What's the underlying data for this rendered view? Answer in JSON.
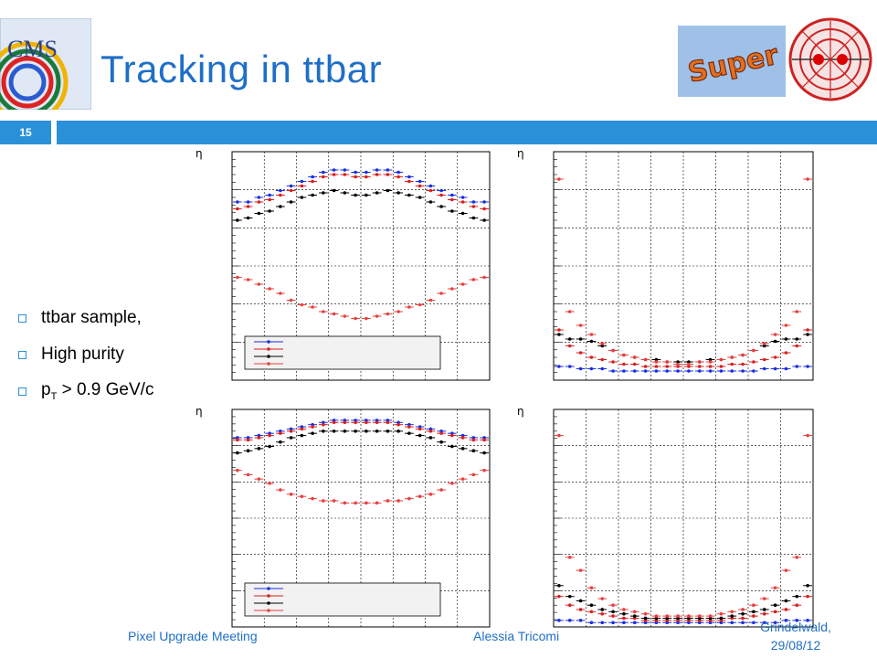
{
  "slide": {
    "number": "15",
    "title": "Tracking in ttbar",
    "cms_logo_text": "CMS",
    "super_logo_text": "Super",
    "bullets": [
      {
        "text": "ttbar sample,"
      },
      {
        "text": "High purity"
      },
      {
        "prefix": "p",
        "sub": "T",
        "suffix": " > 0.9 GeV/c"
      }
    ],
    "footer": {
      "left": "Pixel Upgrade Meeting",
      "center": "Alessia Tricomi",
      "right_line1": "Grindelwald,",
      "right_line2": "29/08/12"
    },
    "plot_axis_label": "η"
  },
  "colors": {
    "accent": "#2a91d8",
    "title": "#1f6fc7",
    "series": [
      "#1a2fe0",
      "#d92020",
      "#000000",
      "#e84040"
    ]
  },
  "chart_data": [
    {
      "type": "scatter",
      "position_word": "top-left",
      "xlabel": "η",
      "series": [
        {
          "values": [
            0.78,
            0.78,
            0.8,
            0.81,
            0.83,
            0.85,
            0.87,
            0.89,
            0.91,
            0.92,
            0.92,
            0.91,
            0.91,
            0.92,
            0.92,
            0.91,
            0.89,
            0.87,
            0.85,
            0.83,
            0.81,
            0.8,
            0.78,
            0.78
          ]
        },
        {
          "values": [
            0.75,
            0.76,
            0.78,
            0.79,
            0.81,
            0.83,
            0.85,
            0.87,
            0.89,
            0.9,
            0.9,
            0.89,
            0.89,
            0.9,
            0.9,
            0.89,
            0.87,
            0.85,
            0.83,
            0.81,
            0.79,
            0.78,
            0.76,
            0.75
          ]
        },
        {
          "values": [
            0.7,
            0.71,
            0.73,
            0.74,
            0.76,
            0.78,
            0.8,
            0.81,
            0.82,
            0.83,
            0.82,
            0.81,
            0.81,
            0.82,
            0.83,
            0.82,
            0.81,
            0.8,
            0.78,
            0.76,
            0.74,
            0.73,
            0.71,
            0.7
          ]
        },
        {
          "values": [
            0.45,
            0.44,
            0.42,
            0.4,
            0.38,
            0.35,
            0.33,
            0.32,
            0.3,
            0.29,
            0.28,
            0.27,
            0.27,
            0.28,
            0.29,
            0.3,
            0.32,
            0.33,
            0.35,
            0.38,
            0.4,
            0.42,
            0.44,
            0.45
          ]
        }
      ]
    },
    {
      "type": "scatter",
      "position_word": "top-right",
      "xlabel": "η",
      "series": [
        {
          "values": [
            0.06,
            0.06,
            0.05,
            0.05,
            0.05,
            0.04,
            0.04,
            0.04,
            0.04,
            0.04,
            0.04,
            0.04,
            0.04,
            0.04,
            0.04,
            0.04,
            0.04,
            0.04,
            0.04,
            0.05,
            0.05,
            0.05,
            0.06,
            0.06
          ]
        },
        {
          "values": [
            0.22,
            0.15,
            0.12,
            0.1,
            0.09,
            0.08,
            0.07,
            0.07,
            0.06,
            0.06,
            0.06,
            0.06,
            0.06,
            0.06,
            0.06,
            0.06,
            0.07,
            0.07,
            0.08,
            0.09,
            0.1,
            0.12,
            0.15,
            0.22
          ]
        },
        {
          "values": [
            0.2,
            0.18,
            0.18,
            0.17,
            0.15,
            0.13,
            0.11,
            0.1,
            0.09,
            0.09,
            0.08,
            0.08,
            0.08,
            0.08,
            0.09,
            0.09,
            0.1,
            0.11,
            0.13,
            0.15,
            0.17,
            0.18,
            0.18,
            0.2
          ]
        },
        {
          "values": [
            0.88,
            0.3,
            0.24,
            0.2,
            0.16,
            0.13,
            0.11,
            0.1,
            0.09,
            0.08,
            0.08,
            0.07,
            0.07,
            0.08,
            0.08,
            0.09,
            0.1,
            0.11,
            0.13,
            0.16,
            0.2,
            0.24,
            0.3,
            0.88
          ]
        }
      ]
    },
    {
      "type": "scatter",
      "position_word": "bottom-left",
      "xlabel": "η",
      "series": [
        {
          "values": [
            0.87,
            0.87,
            0.88,
            0.89,
            0.9,
            0.91,
            0.92,
            0.93,
            0.94,
            0.95,
            0.95,
            0.95,
            0.95,
            0.95,
            0.95,
            0.94,
            0.93,
            0.92,
            0.91,
            0.9,
            0.89,
            0.88,
            0.87,
            0.87
          ]
        },
        {
          "values": [
            0.86,
            0.86,
            0.87,
            0.88,
            0.89,
            0.9,
            0.91,
            0.92,
            0.93,
            0.94,
            0.94,
            0.94,
            0.94,
            0.94,
            0.94,
            0.93,
            0.92,
            0.91,
            0.9,
            0.89,
            0.88,
            0.87,
            0.86,
            0.86
          ]
        },
        {
          "values": [
            0.8,
            0.81,
            0.82,
            0.83,
            0.85,
            0.87,
            0.88,
            0.89,
            0.9,
            0.9,
            0.9,
            0.9,
            0.9,
            0.9,
            0.9,
            0.9,
            0.89,
            0.88,
            0.87,
            0.85,
            0.83,
            0.82,
            0.81,
            0.8
          ]
        },
        {
          "values": [
            0.72,
            0.7,
            0.68,
            0.66,
            0.63,
            0.61,
            0.6,
            0.59,
            0.58,
            0.58,
            0.57,
            0.57,
            0.57,
            0.57,
            0.58,
            0.58,
            0.59,
            0.6,
            0.61,
            0.63,
            0.66,
            0.68,
            0.7,
            0.72
          ]
        }
      ]
    },
    {
      "type": "scatter",
      "position_word": "bottom-right",
      "xlabel": "η",
      "series": [
        {
          "values": [
            0.03,
            0.03,
            0.03,
            0.02,
            0.02,
            0.02,
            0.02,
            0.02,
            0.02,
            0.02,
            0.02,
            0.02,
            0.02,
            0.02,
            0.02,
            0.02,
            0.02,
            0.02,
            0.02,
            0.02,
            0.02,
            0.03,
            0.03,
            0.03
          ]
        },
        {
          "values": [
            0.14,
            0.1,
            0.08,
            0.07,
            0.06,
            0.05,
            0.04,
            0.04,
            0.03,
            0.03,
            0.03,
            0.03,
            0.03,
            0.03,
            0.03,
            0.03,
            0.04,
            0.04,
            0.05,
            0.06,
            0.07,
            0.08,
            0.1,
            0.14
          ]
        },
        {
          "values": [
            0.19,
            0.14,
            0.12,
            0.1,
            0.08,
            0.07,
            0.06,
            0.05,
            0.04,
            0.04,
            0.04,
            0.04,
            0.04,
            0.04,
            0.04,
            0.04,
            0.05,
            0.06,
            0.07,
            0.08,
            0.1,
            0.12,
            0.14,
            0.19
          ]
        },
        {
          "values": [
            0.88,
            0.32,
            0.26,
            0.18,
            0.13,
            0.1,
            0.08,
            0.07,
            0.06,
            0.05,
            0.05,
            0.05,
            0.05,
            0.05,
            0.05,
            0.06,
            0.07,
            0.08,
            0.1,
            0.13,
            0.18,
            0.26,
            0.32,
            0.88
          ]
        }
      ]
    }
  ]
}
